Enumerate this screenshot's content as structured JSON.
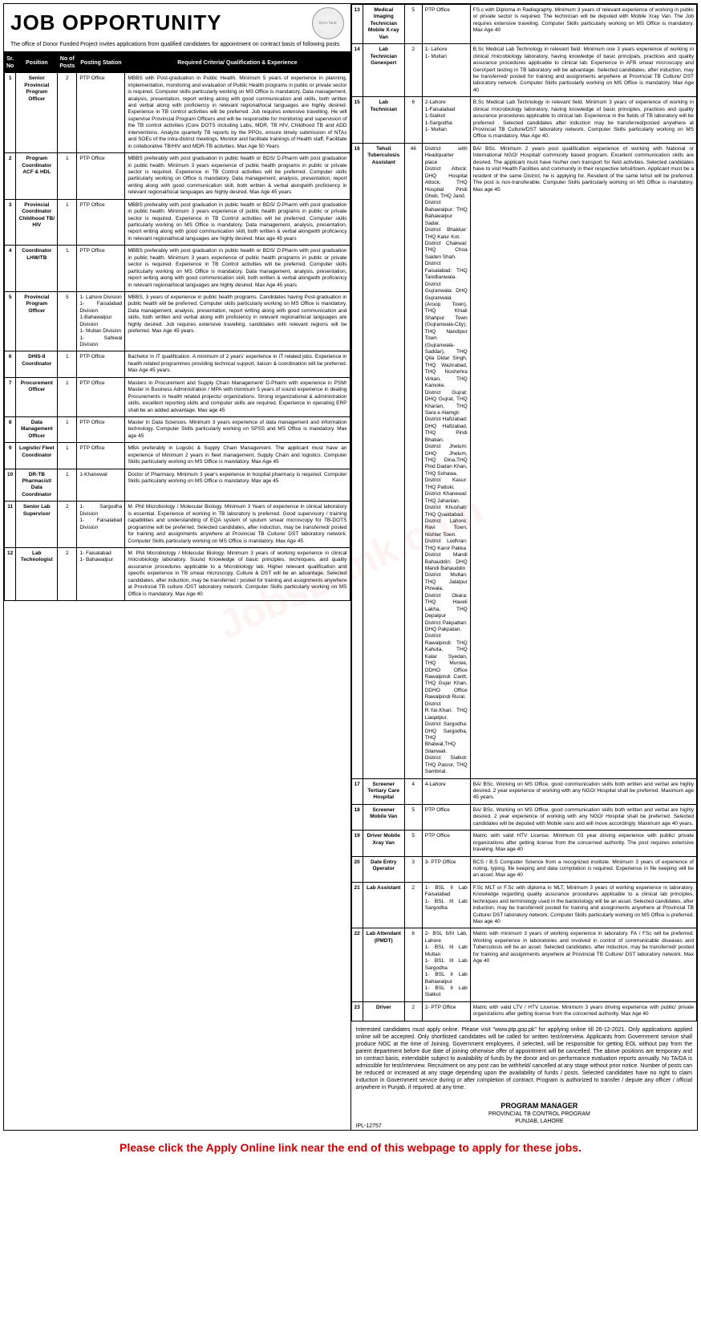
{
  "header": {
    "title": "JOB OPPORTUNITY",
    "intro": "The office of Donor Funded Project invites applications from qualified candidates for appointment on contract basis of following posts",
    "logo_label": "Govt Seal"
  },
  "columns": [
    "Sr. No",
    "Position",
    "No of Posts",
    "Posting Station",
    "Required Criteria/ Qualification & Experience"
  ],
  "left_rows": [
    {
      "sr": "1",
      "pos": "Senior Provincial Program Officer",
      "num": "2",
      "station": "PTP Office",
      "qual": "MBBS with Post-graduation in Public Health. Minimum 5 years of experience in planning, implementation, monitoring and evaluation of Public Health programs in public or private sector is required. Computer skills particularly working on MS Office is mandatory. Data management, analysis, presentation, report writing along with good communication and skills, both written and verbal along with proficiency in relevant regional/local languages are highly desired. Experience in TB control activities will be preferred. Job requires extensive travelling. He will supervise Provincial Program Officers and will be responsible for monitoring and supervision of the TB control activities (Core DOTS including Labs, MDR, TB HIV, Childhood TB and ADD interventions, Analyze quarterly TB reports by the PPOs, ensure timely submission of NTAs and SOEs of the intra-district meetings, Monitor and facilitate trainings of Health staff, Facilitate in collaborative TB/HIV and MDR-TB activities. Max Age 50 Years"
    },
    {
      "sr": "2",
      "pos": "Program Coordinator ACF & HDL",
      "num": "1",
      "station": "PTP Office",
      "qual": "MBBS preferably with post graduation in public health or BDS/ D.Pharm with post graduation in public health. Minimum 3 years experience of public health programs in public or private sector is required. Experience in TB Control activities will be preferred. Computer skills particularly working on Office is mandatory. Data management, analysis, presentation, report writing along with good communication skill, both written & verbal alongwith proficiency in relevant regional/local languages are highly desired. Max Age 45 years"
    },
    {
      "sr": "3",
      "pos": "Provincial Coordinator Childhood TB/ HIV",
      "num": "1",
      "station": "PTP Office",
      "qual": "MBBS preferably with post graduation in public health or BDS/ D.Pharm with post graduation in public health. Minimum 3 years experience of public health programs in public or private sector is required. Experience in TB Control activities will be preferred. Computer skills particularly working on MS Office is mandatory. Data management, analysis, presentation, report writing along with good communication skill, both written & verbal alongwith proficiency in relevant regional/local languages are highly desired. Max age 45 years"
    },
    {
      "sr": "4",
      "pos": "Coordinator LHW/TB",
      "num": "1",
      "station": "PTP Office",
      "qual": "MBBS preferably with post graduation in public health or BDS/ D.Pharm with post graduation in public health. Minimum 3 years experience of public health programs in public or private sector is required. Experience in TB Control activities will be preferred. Computer skills particularly working on MS Office is mandatory. Data management, analysis, presentation, report writing along with good communication skill, both written & verbal alongwith proficiency in relevant regional/local languages are highly desired. Max Age 45 years"
    },
    {
      "sr": "5",
      "pos": "Provincial Program Officer",
      "num": "5",
      "station": "1- Lahore Division\n1- Faisalabad Division\n1-Bahawalpur Division\n1- Multan Division\n1- Sahiwal Division",
      "qual": "MBBS, 3 years of experience in public health programs. Candidates having Post-graduation in public health will be preferred. Computer skills particularly working on MS Office is mandatory. Data management, analysis, presentation, report writing along with good communication and skills, both written and verbal along with proficiency in relevant regional/local languages are highly desired. Job requires extensive travelling. candidates with relevant regions will be preferred. Max Age 45 years."
    },
    {
      "sr": "6",
      "pos": "DHIS-II Coordinator",
      "num": "1",
      "station": "PTP Office",
      "qual": "Bachelor in IT qualification. A minimum of 2 years' experience in IT related jobs. Experience in health related programmes providing technical support, liaison & coordination will be preferred. Max Age 45 years."
    },
    {
      "sr": "7",
      "pos": "Procurement Officer",
      "num": "1",
      "station": "PTP Office",
      "qual": "Masters in Procurement and Supply Chain Management/ D-Pharm with experience in PSM/ Master in Business Administration / MPA with minimum 5 years of sound experience in dealing Procurements in health related projects/ organizations. Strong organizational & administration skills, excellent reporting skills and computer skills are required. Experience in operating ERP shall be an added advantage. Max age 45"
    },
    {
      "sr": "8",
      "pos": "Data Management Officer",
      "num": "1",
      "station": "PTP Office",
      "qual": "Master in Data Sciences. Minimum 3 years experience of data management and information technology. Computer Skills particularly working on SPSS and MS Office is mandatory. Max age 45"
    },
    {
      "sr": "9",
      "pos": "Logistic/ Fleet Coordinator",
      "num": "1",
      "station": "PTP Office",
      "qual": "MBA preferably in Logistic & Supply Chain Management. The applicant must have an experience of Minimum 2 years in fleet management, Supply Chain and logistics. Computer Skills particularly working on MS Office is mandatory. Max Age 45"
    },
    {
      "sr": "10",
      "pos": "DR-TB Pharmacist/ Data Coordinator",
      "num": "1",
      "station": "1-Khanewal",
      "qual": "Doctor of Pharmacy. Minimum 3 year's experience in hospital pharmacy is required. Computer Skills particularly working on MS Office is mandatory. Max age 45"
    },
    {
      "sr": "11",
      "pos": "Senior Lab Supervisor",
      "num": "2",
      "station": "1- Sargodha Division\n1- Faisalabad Division",
      "qual": "M. Phil Microbiology / Molecular Biology. Minimum 3 Years of experience in clinical laboratory is essential. Experience of working in TB laboratory is preferred. Good supervisory / training capabilities and understanding of EQA system of sputum smear microscopy for TB-DOTS programme will be preferred. Selected candidates, after induction, may be transferred/ posted for training and assignments anywhere at Provincial TB Culture/ DST laboratory network. Computer Skills particularly working on MS Office is mandatory. Max Age 45"
    },
    {
      "sr": "12",
      "pos": "Lab Technologist",
      "num": "2",
      "station": "1- Faisalabad\n1- Bahawalpur",
      "qual": "M. Phil Microbiology / Molecular Biology. Minimum 3 years of working experience in clinical /microbiology laboratory. Sound Knowledge of basic principles, techniques, and quality assurance procedures applicable to a Microbiology lab. Higher relevant qualification and specific experience in TB smear microscopy, Culture & DST will be an advantage. Selected candidates, after induction, may be transferred / posted for training and assignments anywhere at Provincial TB culture /DST laboratory network. Computer Skills particularly working on MS Office is mandatory. Max Age 40"
    }
  ],
  "right_rows": [
    {
      "sr": "13",
      "pos": "Medical Imaging Technician Mobile X-ray Van",
      "num": "5",
      "station": "PTP Office",
      "qual": "FS.c with Diploma in Radiography. Minimum 3 years of relevant experience of working in public or private sector is required. The technician will be deputed with Mobile Xray Van. The Job requires extensive traveling. Computer Skills particularly working on MS Office is mandatory. Max Age 40"
    },
    {
      "sr": "14",
      "pos": "Lab Technician Genexpert",
      "num": "2",
      "station": "1- Lahore\n1- Multan",
      "qual": "B.Sc Medical Lab Technology in relevant field. Minimum one 3 years experience of working in clinical /microbiology laboratory, having knowledge of basic principals, practices and quality assurance procedures applicable to clinical lab. Experience in AFB smear microscopy and GenXpert testing in TB laboratory will be advantage. Selected candidates, after induction, may be transferred/ posted for training and assignments anywhere at Provincial TB Culture/ DST laboratory network. Computer Skills particularly working on MS Office is mandatory. Max Age 40"
    },
    {
      "sr": "15",
      "pos": "Lab Technician",
      "num": "6",
      "station": "2-Lahore\n1-Faisalabad\n1-Sialkot\n1-Sargodha\n1- Multan",
      "qual": "B.Sc Medical Lab Technology in relevant field. Minimum 3 years of experience of working in clinical /microbiology laboratory, having knowledge of basic principles, practices and quality assurance procedures applicable to clinical lab. Experience in the fields of TB laboratory will be preferred . Selected candidates after induction may be transferred/posted anywhere at Provincial TB Culture/DST laboratory network. Computer Skills particularly working on MS Office is mandatory. Max Age 40."
    },
    {
      "sr": "16",
      "pos": "Tehsil Tuberculosis Assistant",
      "num": "46",
      "station": "District with Headquarter place\nDistrict Attock: DHQ Hospital Attock, THQ Hospital Pindi Gheb, THQ Jand.\nDistrict Bahawalpur: THQ Bahawalpur Sadar.\nDistrict Bhakkar: THQ Kalur Kot.\nDistrict Chakwal: THQ Choa Saiden Shah.\nDistrict Faisalabad: THQ Tandlianwala.\nDistrict Gujranwala: DHQ Gujranwala (Aroop Town), THQ Khiali Shahpur Town (Gujranwala-City), THQ Nandipur Town (Gujranwala-Saddar), THQ Qila Didar Singh, THQ Wazirabad, THQ Noshehra Virkan, THQ Kamoke.\nDistrict Gujrat: DHQ Gujrat, THQ Kharian, THQ Sara e Alamgir.\nDistrict Hafizabad: DHQ Hafizabad, THQ Pindi Bhatian.\nDistrict Jhelum: DHQ Jhelum, THQ Dina,THQ Pind Dadan Khan, THQ Sohawa.\nDistrict Kasur: THQ Pattoki.\nDistrict Khanewal: THQ Jahanian.\nDistrict Khushab: THQ Quaidabad.\nDistrict Lahore: Ravi Town, Nishter Town.\nDistrict Lodhran: THQ Karor Pakka\nDistrict Mandi Bahauddin: DHQ Mandi Bahauddin\nDistrict Multan: THQ Jalalpur Pirwala,\nDistrict Okara: THQ Haveli Lakha, THQ Depalpur\nDistrict Pakpattan: DHQ Pakpatan.\nDistrict Rawalpindi: THQ Kahuta, THQ Kalar Syedan, THQ Murree, DDHO Office Rawalpindi Cantt, THQ Gujar Khan, DDHO Office Rawalpindi Rural.\nDistrict R.Yar.Khan: THQ Liaqatpur.\nDistrict Sargodha: DHQ Sargodha, THQ Bhalwal,THQ Silanwali.\nDistrict Sialkot: THQ Pasror, THQ Sambrial.",
      "qual": "BA/ BSc. Minimum 2 years post qualification experience of working with National or International NGO/ Hospital/ community based program. Excellent communication skills are desired. The applicant must have his/her own transport for field activities. Selected candidates have to visit Health Facilities and community in their respective tehsil/town. Applicant must be a resident of the same District, he is applying for. Resident of the same tehsil will be preferred. The post is non-transferable. Computer Skills particularly working on MS Office is mandatory. Max age 45"
    },
    {
      "sr": "17",
      "pos": "Screener Tertiary Care Hospital",
      "num": "4",
      "station": "4-Lahore",
      "qual": "BA/ BSc. Working on MS Office, good communication skills both written and verbal are highly desired. 2 year experience of working with any NGO/ Hospital shall be preferred. Maximum age 45 years."
    },
    {
      "sr": "18",
      "pos": "Screener Mobile Van",
      "num": "5",
      "station": "PTP Office",
      "qual": "BA/ BSc. Working on MS Office, good communication skills both written and verbal are highly desired. 2 year experience of working with any NGO/ Hospital shall be preferred. Selected candidates will be deputed with Mobile vans and will move accordingly. Maximum age 40 years."
    },
    {
      "sr": "19",
      "pos": "Driver Mobile Xray Van",
      "num": "5",
      "station": "PTP Office",
      "qual": "Matric with valid HTV License. Minimum 03 year driving experience with public/ private organizations after getting license from the concerned authority. The post requires extensive traveling. Max age 40"
    },
    {
      "sr": "20",
      "pos": "Date Entry Operator",
      "num": "3",
      "station": "3- PTP Office",
      "qual": "BCS / B.S Computer Science from a recognized institute. Minimum 3 years of experience of noting, typing, file keeping and data compilation is required. Experience in file keeping will be an asset. Max age 40"
    },
    {
      "sr": "21",
      "pos": "Lab Assistant",
      "num": "2",
      "station": "1- BSL II Lab Faisalabad\n1- BSL III Lab Sargodha",
      "qual": "F.Sc MLT or F.Sc with diploma in MLT, Minimum 3 years of working experience in laboratory. Knowledge regarding quality assurance procedures applicable to a clinical lab principles, techniques and terminology used in the bacteriology will be an asset. Selected candidates, after induction, may be transferred/ posted for training and assignments anywhere at Provincial TB Culture/ DST laboratory network. Computer Skills particularly working on MS Office is preferred. Max age 40"
    },
    {
      "sr": "22",
      "pos": "Lab Attendant (PMDT)",
      "num": "6",
      "station": "2- BSL II/III Lab, Lahore\n1- BSL III Lab Multan\n1- BSL III Lab Sargodha\n1- BSL II Lab Bahawalpur\n1- BSL II Lab Sialkot",
      "qual": "Matric with minimum 3 years of working experience in laboratory. FA / FSc will be preferred. Working experience in laboratories and involved in control of communicable diseases and Tuberculosis will be an asset. Selected candidates, after induction, may be transferred/ posted for training and assignments anywhere at Provincial TB Culture/ DST laboratory network. Max Age 40"
    },
    {
      "sr": "23",
      "pos": "Driver",
      "num": "2",
      "station": "2- PTP Office",
      "qual": "Matric with valid LTV / HTV License. Minimum 3 years driving experience with public/ private organizations after getting license from the concerned authority. Max Age 40"
    }
  ],
  "footer": {
    "note": "Interested candidates must apply online. Please visit \"www.ptp.gop.pk\" for applying online till 26-12-2021. Only applications applied online will be accepted. Only shortlisted candidates will be called for written test/interview. Applicants from Government service shall produce NOC at the time of Joining. Government employees, if selected, will be responsible for getting EOL without pay from the parent department before due date of joining otherwise offer of appointment will be cancelled. The above positions are temporary and on contract basis, extendable subject to availability of funds by the donor and on performance evaluation reports annually. No TA/DA is admissible for test/interview. Recruitment on any post can be withheld/ cancelled at any stage without prior notice. Number of posts can be reduced or increased at any stage depending upon the availability of funds / posts. Selected candidates have no right to claim induction in Government service during or after completion of contract. Program is authorized to transfer / depute any officer / official anywhere in Punjab, if required, at any time.",
    "ipl": "IPL-12757",
    "pm_title": "PROGRAM MANAGER",
    "pm_sub1": "PROVINCIAL TB CONTROL PROGRAM",
    "pm_sub2": "PUNJAB, LAHORE"
  },
  "apply_banner": "Please click the Apply Online link near the end of this webpage to apply for these jobs.",
  "watermark": "JobsBank.com",
  "colors": {
    "header_bg": "#000000",
    "header_fg": "#ffffff",
    "banner_color": "#d40000",
    "border": "#000000"
  }
}
